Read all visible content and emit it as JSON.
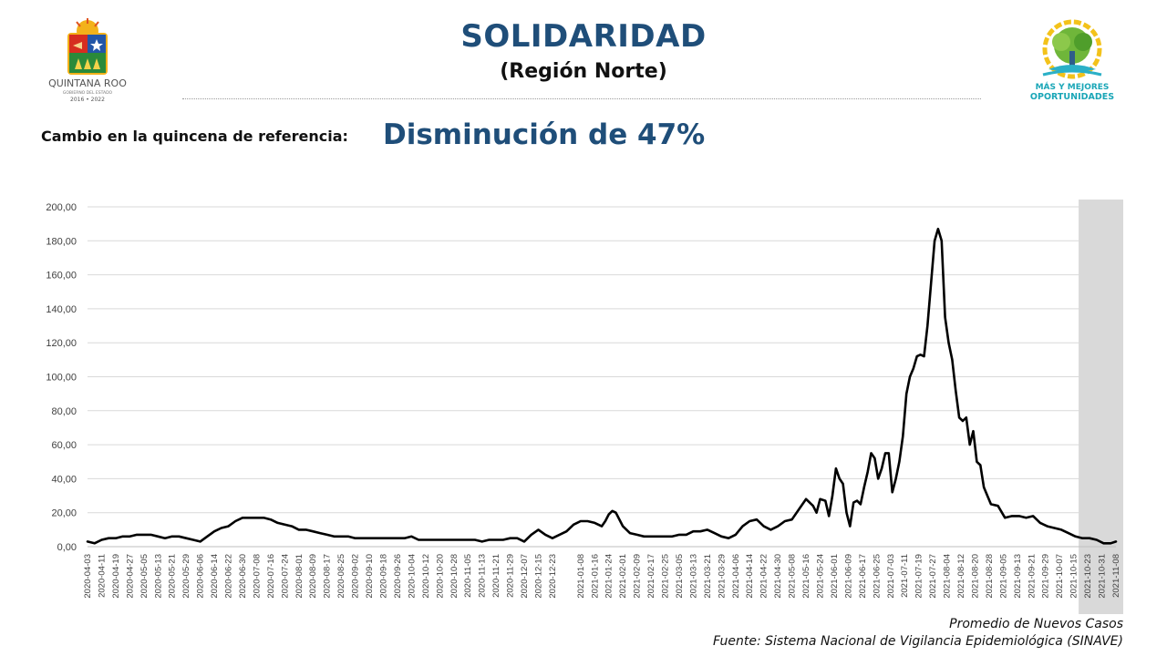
{
  "header": {
    "title": "SOLIDARIDAD",
    "subtitle": "(Región Norte)"
  },
  "summary": {
    "label": "Cambio en la quincena de referencia:",
    "value": "Disminución de 47%"
  },
  "logos": {
    "left_text": "QUINTANA ROO",
    "left_subtext": "GOBIERNO DEL ESTADO",
    "left_years": "2016 • 2022",
    "right_text_1": "MÁS Y MEJORES",
    "right_text_2": "OPORTUNIDADES"
  },
  "footer": {
    "series_note": "Promedio de Nuevos Casos",
    "source": "Fuente: Sistema Nacional de Vigilancia Epidemiológica (SINAVE)"
  },
  "colors": {
    "title": "#1f4e79",
    "line": "#000000",
    "highlight": "#d9d9d9",
    "grid": "#d9d9d9"
  },
  "chart_data": {
    "type": "line",
    "title": "",
    "xlabel": "",
    "ylabel": "",
    "ylim": [
      0,
      200
    ],
    "yticks": [
      "0,00",
      "20,00",
      "40,00",
      "60,00",
      "80,00",
      "100,00",
      "120,00",
      "140,00",
      "160,00",
      "180,00",
      "200,00"
    ],
    "xticks": [
      "2020-04-03",
      "2020-04-11",
      "2020-04-19",
      "2020-04-27",
      "2020-05-05",
      "2020-05-13",
      "2020-05-21",
      "2020-05-29",
      "2020-06-06",
      "2020-06-14",
      "2020-06-22",
      "2020-06-30",
      "2020-07-08",
      "2020-07-16",
      "2020-07-24",
      "2020-08-01",
      "2020-08-09",
      "2020-08-17",
      "2020-08-25",
      "2020-09-02",
      "2020-09-10",
      "2020-09-18",
      "2020-09-26",
      "2020-10-04",
      "2020-10-12",
      "2020-10-20",
      "2020-10-28",
      "2020-11-05",
      "2020-11-13",
      "2020-11-21",
      "2020-11-29",
      "2020-12-07",
      "2020-12-15",
      "2020-12-23",
      "2021-01-08",
      "2021-01-16",
      "2021-01-24",
      "2021-02-01",
      "2021-02-09",
      "2021-02-17",
      "2021-02-25",
      "2021-03-05",
      "2021-03-13",
      "2021-03-21",
      "2021-03-29",
      "2021-04-06",
      "2021-04-14",
      "2021-04-22",
      "2021-04-30",
      "2021-05-08",
      "2021-05-16",
      "2021-05-24",
      "2021-06-01",
      "2021-06-09",
      "2021-06-17",
      "2021-06-25",
      "2021-07-03",
      "2021-07-11",
      "2021-07-19",
      "2021-07-27",
      "2021-08-04",
      "2021-08-12",
      "2021-08-20",
      "2021-08-28",
      "2021-09-05",
      "2021-09-13",
      "2021-09-21",
      "2021-09-29",
      "2021-10-07",
      "2021-10-15",
      "2021-10-23",
      "2021-10-31",
      "2021-11-08"
    ],
    "grid": true,
    "highlight_region": {
      "from": "2021-10-23",
      "to": "2021-11-08"
    },
    "series": [
      {
        "name": "",
        "points": [
          [
            "2020-04-03",
            3
          ],
          [
            "2020-04-07",
            2
          ],
          [
            "2020-04-11",
            4
          ],
          [
            "2020-04-15",
            5
          ],
          [
            "2020-04-19",
            5
          ],
          [
            "2020-04-23",
            6
          ],
          [
            "2020-04-27",
            6
          ],
          [
            "2020-05-01",
            7
          ],
          [
            "2020-05-05",
            7
          ],
          [
            "2020-05-09",
            7
          ],
          [
            "2020-05-13",
            6
          ],
          [
            "2020-05-17",
            5
          ],
          [
            "2020-05-21",
            6
          ],
          [
            "2020-05-25",
            6
          ],
          [
            "2020-05-29",
            5
          ],
          [
            "2020-06-02",
            4
          ],
          [
            "2020-06-06",
            3
          ],
          [
            "2020-06-10",
            6
          ],
          [
            "2020-06-14",
            9
          ],
          [
            "2020-06-18",
            11
          ],
          [
            "2020-06-22",
            12
          ],
          [
            "2020-06-26",
            15
          ],
          [
            "2020-06-30",
            17
          ],
          [
            "2020-07-04",
            17
          ],
          [
            "2020-07-08",
            17
          ],
          [
            "2020-07-12",
            17
          ],
          [
            "2020-07-16",
            16
          ],
          [
            "2020-07-20",
            14
          ],
          [
            "2020-07-24",
            13
          ],
          [
            "2020-07-28",
            12
          ],
          [
            "2020-08-01",
            10
          ],
          [
            "2020-08-05",
            10
          ],
          [
            "2020-08-09",
            9
          ],
          [
            "2020-08-13",
            8
          ],
          [
            "2020-08-17",
            7
          ],
          [
            "2020-08-21",
            6
          ],
          [
            "2020-08-25",
            6
          ],
          [
            "2020-08-29",
            6
          ],
          [
            "2020-09-02",
            5
          ],
          [
            "2020-09-06",
            5
          ],
          [
            "2020-09-10",
            5
          ],
          [
            "2020-09-14",
            5
          ],
          [
            "2020-09-18",
            5
          ],
          [
            "2020-09-22",
            5
          ],
          [
            "2020-09-26",
            5
          ],
          [
            "2020-09-30",
            5
          ],
          [
            "2020-10-04",
            6
          ],
          [
            "2020-10-08",
            4
          ],
          [
            "2020-10-12",
            4
          ],
          [
            "2020-10-16",
            4
          ],
          [
            "2020-10-20",
            4
          ],
          [
            "2020-10-24",
            4
          ],
          [
            "2020-10-28",
            4
          ],
          [
            "2020-11-01",
            4
          ],
          [
            "2020-11-05",
            4
          ],
          [
            "2020-11-09",
            4
          ],
          [
            "2020-11-13",
            3
          ],
          [
            "2020-11-17",
            4
          ],
          [
            "2020-11-21",
            4
          ],
          [
            "2020-11-25",
            4
          ],
          [
            "2020-11-29",
            5
          ],
          [
            "2020-12-03",
            5
          ],
          [
            "2020-12-07",
            3
          ],
          [
            "2020-12-11",
            7
          ],
          [
            "2020-12-15",
            10
          ],
          [
            "2020-12-19",
            7
          ],
          [
            "2020-12-23",
            5
          ],
          [
            "2020-12-31",
            9
          ],
          [
            "2021-01-04",
            13
          ],
          [
            "2021-01-08",
            15
          ],
          [
            "2021-01-12",
            15
          ],
          [
            "2021-01-16",
            14
          ],
          [
            "2021-01-20",
            12
          ],
          [
            "2021-01-22",
            15
          ],
          [
            "2021-01-24",
            19
          ],
          [
            "2021-01-26",
            21
          ],
          [
            "2021-01-28",
            20
          ],
          [
            "2021-02-01",
            12
          ],
          [
            "2021-02-05",
            8
          ],
          [
            "2021-02-09",
            7
          ],
          [
            "2021-02-13",
            6
          ],
          [
            "2021-02-17",
            6
          ],
          [
            "2021-02-21",
            6
          ],
          [
            "2021-02-25",
            6
          ],
          [
            "2021-03-01",
            6
          ],
          [
            "2021-03-05",
            7
          ],
          [
            "2021-03-09",
            7
          ],
          [
            "2021-03-13",
            9
          ],
          [
            "2021-03-17",
            9
          ],
          [
            "2021-03-21",
            10
          ],
          [
            "2021-03-25",
            8
          ],
          [
            "2021-03-29",
            6
          ],
          [
            "2021-04-02",
            5
          ],
          [
            "2021-04-06",
            7
          ],
          [
            "2021-04-10",
            12
          ],
          [
            "2021-04-14",
            15
          ],
          [
            "2021-04-18",
            16
          ],
          [
            "2021-04-22",
            12
          ],
          [
            "2021-04-26",
            10
          ],
          [
            "2021-04-30",
            12
          ],
          [
            "2021-05-04",
            15
          ],
          [
            "2021-05-08",
            16
          ],
          [
            "2021-05-12",
            22
          ],
          [
            "2021-05-16",
            28
          ],
          [
            "2021-05-20",
            24
          ],
          [
            "2021-05-22",
            20
          ],
          [
            "2021-05-24",
            28
          ],
          [
            "2021-05-27",
            27
          ],
          [
            "2021-05-29",
            18
          ],
          [
            "2021-05-31",
            30
          ],
          [
            "2021-06-02",
            46
          ],
          [
            "2021-06-04",
            40
          ],
          [
            "2021-06-06",
            37
          ],
          [
            "2021-06-08",
            20
          ],
          [
            "2021-06-10",
            12
          ],
          [
            "2021-06-12",
            26
          ],
          [
            "2021-06-14",
            27
          ],
          [
            "2021-06-16",
            25
          ],
          [
            "2021-06-18",
            35
          ],
          [
            "2021-06-20",
            44
          ],
          [
            "2021-06-22",
            55
          ],
          [
            "2021-06-24",
            52
          ],
          [
            "2021-06-26",
            40
          ],
          [
            "2021-06-28",
            46
          ],
          [
            "2021-06-30",
            55
          ],
          [
            "2021-07-02",
            55
          ],
          [
            "2021-07-04",
            32
          ],
          [
            "2021-07-06",
            40
          ],
          [
            "2021-07-08",
            50
          ],
          [
            "2021-07-10",
            65
          ],
          [
            "2021-07-12",
            90
          ],
          [
            "2021-07-14",
            100
          ],
          [
            "2021-07-16",
            105
          ],
          [
            "2021-07-18",
            112
          ],
          [
            "2021-07-20",
            113
          ],
          [
            "2021-07-22",
            112
          ],
          [
            "2021-07-24",
            130
          ],
          [
            "2021-07-26",
            155
          ],
          [
            "2021-07-28",
            180
          ],
          [
            "2021-07-30",
            187
          ],
          [
            "2021-08-01",
            180
          ],
          [
            "2021-08-03",
            135
          ],
          [
            "2021-08-05",
            120
          ],
          [
            "2021-08-07",
            110
          ],
          [
            "2021-08-09",
            92
          ],
          [
            "2021-08-11",
            76
          ],
          [
            "2021-08-13",
            74
          ],
          [
            "2021-08-15",
            76
          ],
          [
            "2021-08-17",
            60
          ],
          [
            "2021-08-19",
            68
          ],
          [
            "2021-08-21",
            50
          ],
          [
            "2021-08-23",
            48
          ],
          [
            "2021-08-25",
            35
          ],
          [
            "2021-08-27",
            30
          ],
          [
            "2021-08-29",
            25
          ],
          [
            "2021-09-02",
            24
          ],
          [
            "2021-09-06",
            17
          ],
          [
            "2021-09-10",
            18
          ],
          [
            "2021-09-14",
            18
          ],
          [
            "2021-09-18",
            17
          ],
          [
            "2021-09-22",
            18
          ],
          [
            "2021-09-26",
            14
          ],
          [
            "2021-09-30",
            12
          ],
          [
            "2021-10-04",
            11
          ],
          [
            "2021-10-08",
            10
          ],
          [
            "2021-10-12",
            8
          ],
          [
            "2021-10-16",
            6
          ],
          [
            "2021-10-20",
            5
          ],
          [
            "2021-10-24",
            5
          ],
          [
            "2021-10-28",
            4
          ],
          [
            "2021-11-01",
            2
          ],
          [
            "2021-11-05",
            2
          ],
          [
            "2021-11-08",
            3
          ]
        ]
      }
    ]
  }
}
